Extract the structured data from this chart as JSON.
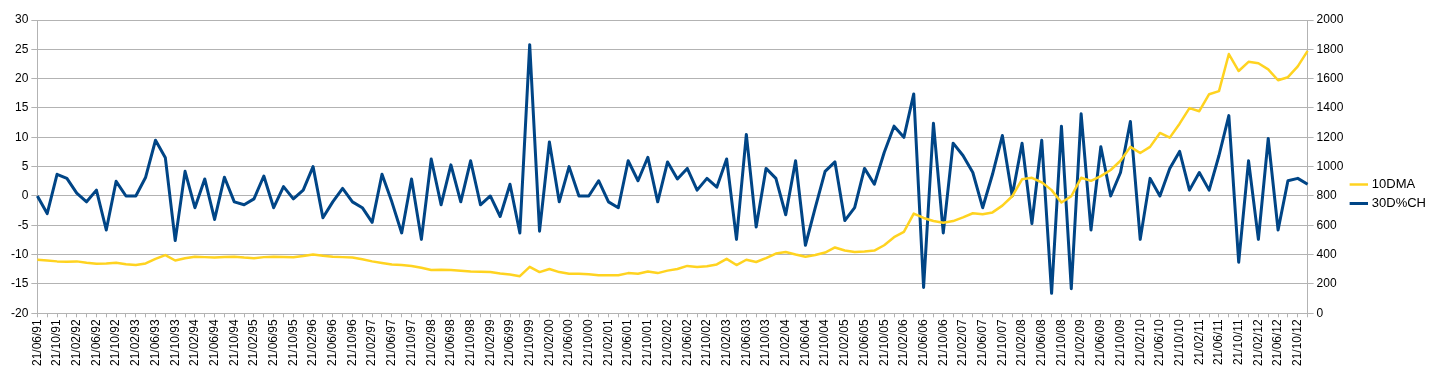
{
  "chart_data": {
    "type": "line",
    "categories": [
      "21/06/91",
      null,
      "21/10/91",
      null,
      "21/02/92",
      null,
      "21/06/92",
      null,
      "21/10/92",
      null,
      "21/02/93",
      null,
      "21/06/93",
      null,
      "21/10/93",
      null,
      "21/02/94",
      null,
      "21/06/94",
      null,
      "21/10/94",
      null,
      "21/02/95",
      null,
      "21/06/95",
      null,
      "21/10/95",
      null,
      "21/02/96",
      null,
      "21/06/96",
      null,
      "21/10/96",
      null,
      "21/02/97",
      null,
      "21/06/97",
      null,
      "21/10/97",
      null,
      "21/02/98",
      null,
      "21/06/98",
      null,
      "21/10/98",
      null,
      "21/02/99",
      null,
      "21/06/99",
      null,
      "21/10/99",
      null,
      "21/02/00",
      null,
      "21/06/00",
      null,
      "21/10/00",
      null,
      "21/02/01",
      null,
      "21/06/01",
      null,
      "21/10/01",
      null,
      "21/02/02",
      null,
      "21/06/02",
      null,
      "21/10/02",
      null,
      "21/02/03",
      null,
      "21/06/03",
      null,
      "21/10/03",
      null,
      "21/02/04",
      null,
      "21/06/04",
      null,
      "21/10/04",
      null,
      "21/02/05",
      null,
      "21/06/05",
      null,
      "21/10/05",
      null,
      "21/02/06",
      null,
      "21/06/06",
      null,
      "21/10/06",
      null,
      "21/02/07",
      null,
      "21/06/07",
      null,
      "21/10/07",
      null,
      "21/02/08",
      null,
      "21/06/08",
      null,
      "21/10/08",
      null,
      "21/02/09",
      null,
      "21/06/09",
      null,
      "21/10/09",
      null,
      "21/02/10",
      null,
      "21/06/10",
      null,
      "21/10/10",
      null,
      "21/02/11",
      null,
      "21/06/11",
      null,
      "21/10/11",
      null,
      "21/02/12",
      null,
      "21/06/12",
      null,
      "21/10/12",
      null
    ],
    "series": [
      {
        "name": "10DMA",
        "color": "#ffd320",
        "axis": "y2",
        "values": [
          365,
          360,
          354,
          352,
          354,
          345,
          338,
          340,
          344,
          335,
          329,
          340,
          371,
          397,
          360,
          375,
          386,
          383,
          380,
          384,
          386,
          380,
          376,
          383,
          386,
          384,
          382,
          390,
          401,
          392,
          386,
          383,
          380,
          368,
          354,
          343,
          333,
          330,
          323,
          310,
          295,
          297,
          295,
          290,
          285,
          283,
          281,
          272,
          265,
          253,
          317,
          281,
          302,
          281,
          270,
          270,
          266,
          260,
          260,
          260,
          274,
          270,
          285,
          274,
          291,
          302,
          323,
          316,
          321,
          333,
          371,
          329,
          365,
          350,
          376,
          407,
          418,
          401,
          386,
          397,
          414,
          449,
          428,
          418,
          422,
          428,
          464,
          519,
          555,
          680,
          650,
          629,
          618,
          629,
          654,
          682,
          675,
          688,
          734,
          798,
          914,
          924,
          893,
          840,
          755,
          798,
          924,
          903,
          935,
          977,
          1040,
          1135,
          1093,
          1135,
          1230,
          1198,
          1293,
          1399,
          1378,
          1494,
          1515,
          1768,
          1652,
          1715,
          1705,
          1663,
          1589,
          1610,
          1684,
          1789
        ]
      },
      {
        "name": "30D%CH",
        "color": "#004586",
        "values": [
          0,
          -3,
          3.7,
          3,
          0.5,
          -1,
          1,
          -5.8,
          2.5,
          0,
          0,
          3.2,
          9.5,
          6.5,
          -7.6,
          4.2,
          -2,
          2.9,
          -4,
          3.2,
          -1,
          -1.5,
          -0.5,
          3.4,
          -2,
          1.6,
          -0.5,
          1,
          5,
          -3.7,
          -1,
          1.3,
          -1,
          -2,
          -4.5,
          3.7,
          -1,
          -6.3,
          2.9,
          -7.4,
          6.3,
          -1.5,
          5.3,
          -1,
          6,
          -1.5,
          0,
          -3.5,
          2,
          -6.3,
          25.8,
          -6,
          9.2,
          -1,
          5,
          0,
          0,
          2.6,
          -1,
          -2,
          6,
          2.6,
          6.6,
          -1,
          5.8,
          2.9,
          4.7,
          1,
          3,
          1.5,
          6.3,
          -7.4,
          10.5,
          -5.3,
          4.7,
          3,
          -3.2,
          6,
          -8.4,
          -2,
          4.2,
          5.8,
          -4.2,
          -2,
          4.7,
          2,
          7.4,
          11.9,
          10,
          17.4,
          -15.6,
          12.4,
          -6.3,
          9,
          6.9,
          4,
          -2,
          3.7,
          10.3,
          0,
          9,
          -4.7,
          9.5,
          -16.6,
          11.9,
          -15.8,
          14,
          -5.8,
          8.4,
          0,
          4,
          12.7,
          -7.4,
          3,
          0,
          4.7,
          7.6,
          1,
          4,
          1,
          6.9,
          13.7,
          -11.3,
          6,
          -7.4,
          9.8,
          -5.8,
          2.6,
          3,
          2
        ]
      }
    ],
    "ylim": [
      -20,
      30
    ],
    "yticks": [
      -20,
      -15,
      -10,
      -5,
      0,
      5,
      10,
      15,
      20,
      25,
      30
    ],
    "y2lim": [
      0,
      2000
    ],
    "y2ticks": [
      0,
      200,
      400,
      600,
      800,
      1000,
      1200,
      1400,
      1600,
      1800,
      2000
    ],
    "grid": "y",
    "legend": "right",
    "marker": "none",
    "line_style": "solid"
  }
}
